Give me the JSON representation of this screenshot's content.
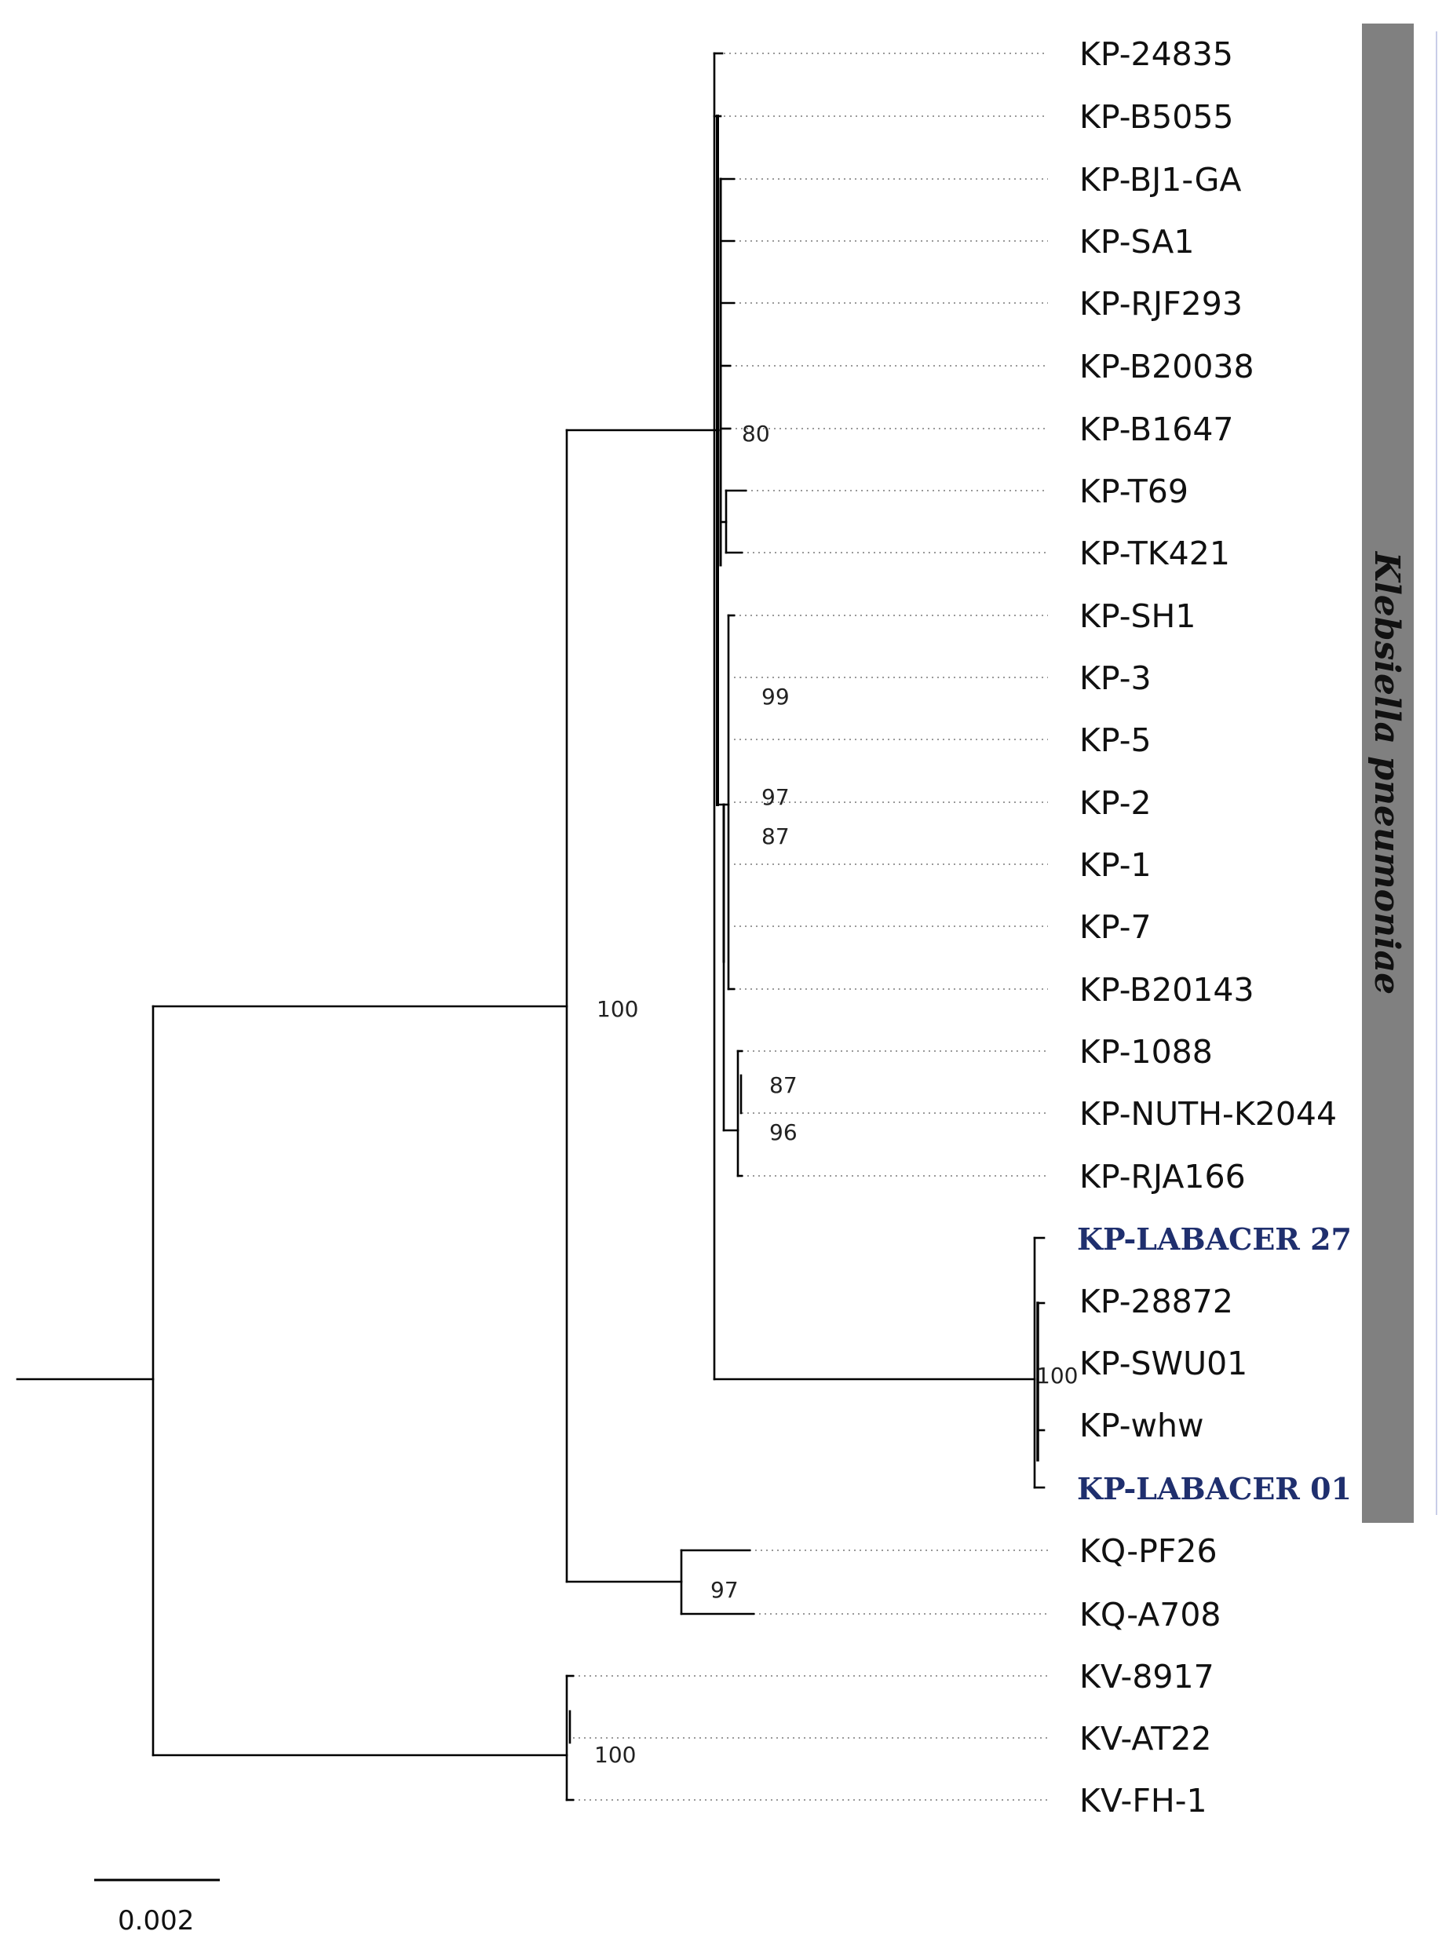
{
  "tree": {
    "taxa": [
      {
        "label": "KP-24835",
        "highlight": false
      },
      {
        "label": "KP-B5055",
        "highlight": false
      },
      {
        "label": "KP-BJ1-GA",
        "highlight": false
      },
      {
        "label": "KP-SA1",
        "highlight": false
      },
      {
        "label": "KP-RJF293",
        "highlight": false
      },
      {
        "label": "KP-B20038",
        "highlight": false
      },
      {
        "label": "KP-B1647",
        "highlight": false
      },
      {
        "label": "KP-T69",
        "highlight": false
      },
      {
        "label": "KP-TK421",
        "highlight": false
      },
      {
        "label": "KP-SH1",
        "highlight": false
      },
      {
        "label": "KP-3",
        "highlight": false
      },
      {
        "label": "KP-5",
        "highlight": false
      },
      {
        "label": "KP-2",
        "highlight": false
      },
      {
        "label": "KP-1",
        "highlight": false
      },
      {
        "label": "KP-7",
        "highlight": false
      },
      {
        "label": "KP-B20143",
        "highlight": false
      },
      {
        "label": "KP-1088",
        "highlight": false
      },
      {
        "label": "KP-NUTH-K2044",
        "highlight": false
      },
      {
        "label": "KP-RJA166",
        "highlight": false
      },
      {
        "label": "KP-LABACER 27",
        "highlight": true
      },
      {
        "label": "KP-28872",
        "highlight": false
      },
      {
        "label": "KP-SWU01",
        "highlight": false
      },
      {
        "label": "KP-whw",
        "highlight": false
      },
      {
        "label": "KP-LABACER 01",
        "highlight": true
      },
      {
        "label": "KQ-PF26",
        "highlight": false
      },
      {
        "label": "KQ-A708",
        "highlight": false
      },
      {
        "label": "KV-8917",
        "highlight": false
      },
      {
        "label": "KV-AT22",
        "highlight": false
      },
      {
        "label": "KV-FH-1",
        "highlight": false
      }
    ],
    "bootstrap": [
      "80",
      "99",
      "97",
      "87",
      "100",
      "87",
      "96",
      "100",
      "97",
      "100"
    ],
    "clade_label": "Klebsiella pneumoniae",
    "scale_bar": {
      "value": 0.002,
      "label": "0.002"
    },
    "colors": {
      "highlight": "#1f2f6e",
      "clade_bar": "#808080",
      "branch": "#000000"
    }
  }
}
